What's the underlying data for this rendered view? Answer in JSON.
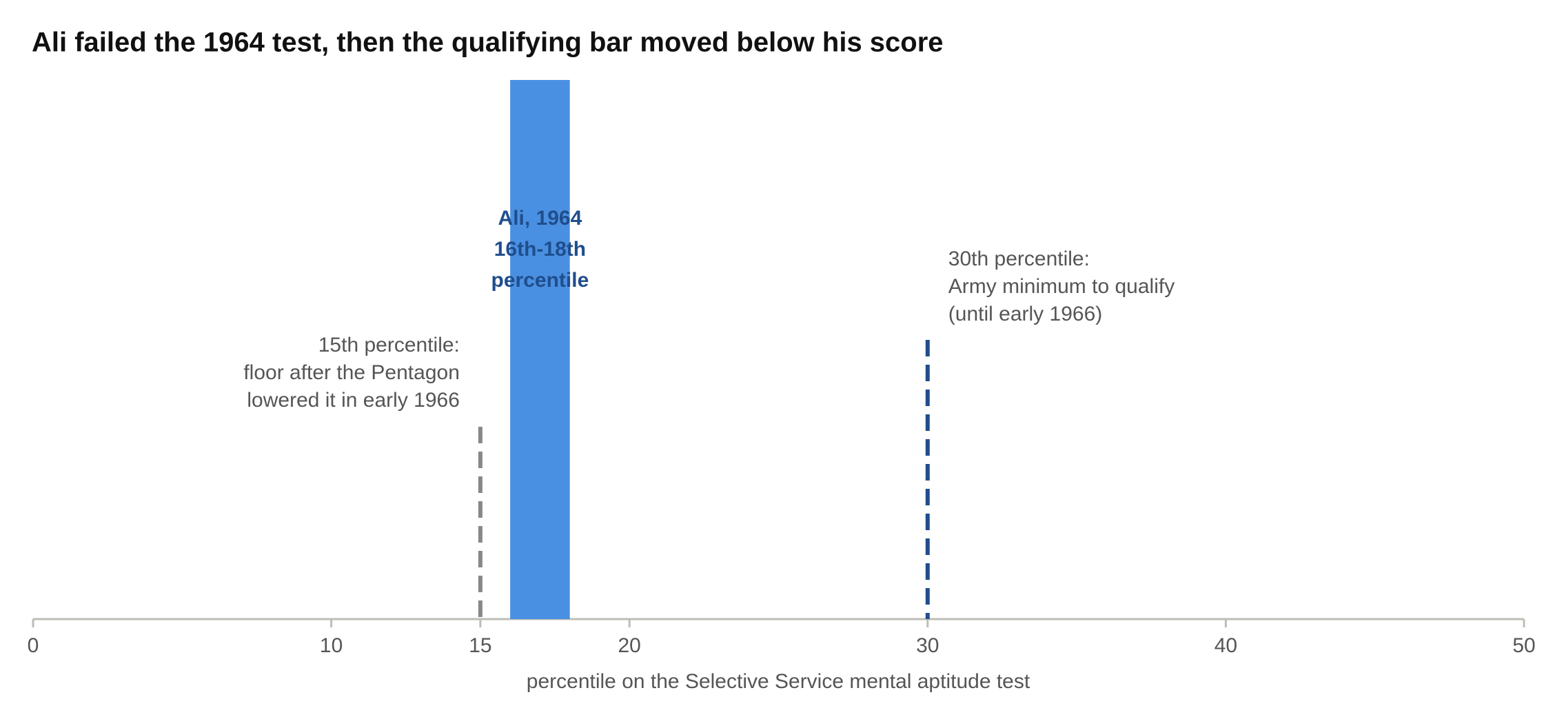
{
  "chart_data": {
    "type": "range",
    "title": "Ali failed the 1964 test, then the qualifying bar moved below his score",
    "xlabel": "percentile on the Selective Service mental aptitude test",
    "xlim": [
      0,
      50
    ],
    "xticks": [
      0,
      10,
      15,
      20,
      30,
      40,
      50
    ],
    "ranges": [
      {
        "label": [
          "Ali, 1964",
          "16th-18th",
          "percentile"
        ],
        "start": 16,
        "end": 18,
        "color": "#4a90e2",
        "label_color": "#1f4e8c"
      }
    ],
    "reference_lines": [
      {
        "value": 15,
        "label": [
          "15th percentile:",
          "floor after the Pentagon",
          "lowered it in early 1966"
        ],
        "color": "#888888"
      },
      {
        "value": 30,
        "label": [
          "30th percentile:",
          "Army minimum to qualify",
          "(until early 1966)"
        ],
        "color": "#1f4e8c"
      }
    ]
  }
}
